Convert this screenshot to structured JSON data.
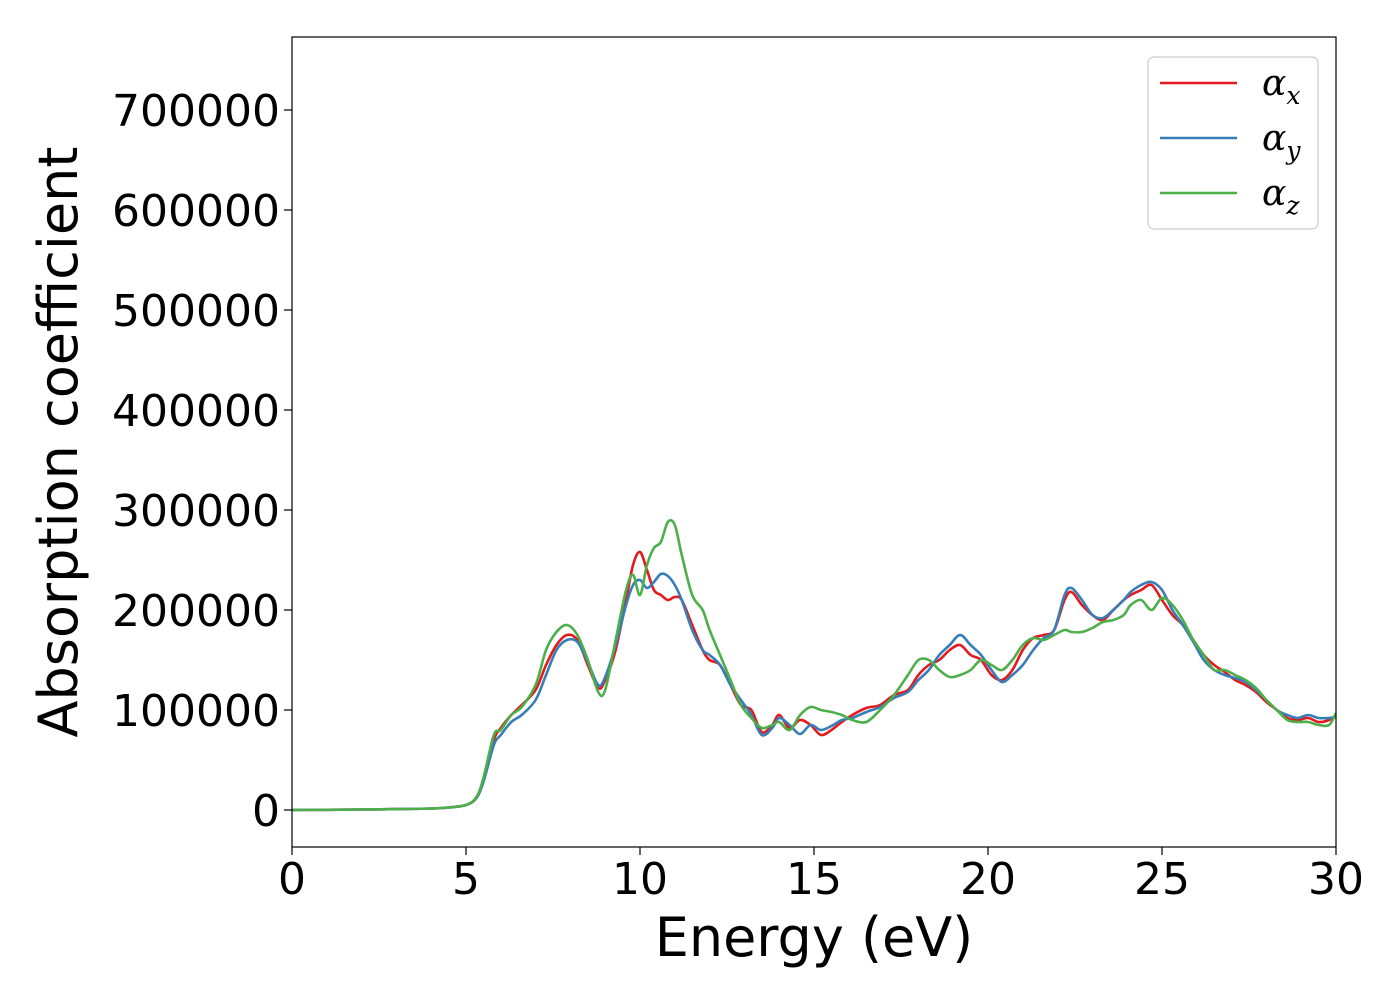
{
  "chart_data": {
    "type": "line",
    "xlabel": "Energy (eV)",
    "ylabel": "Absorption coefficient",
    "xlim": [
      0,
      30
    ],
    "ylim": [
      -37000,
      773000
    ],
    "x_ticks": [
      0,
      5,
      10,
      15,
      20,
      25,
      30
    ],
    "y_ticks": [
      0,
      100000,
      200000,
      300000,
      400000,
      500000,
      600000,
      700000
    ],
    "grid": false,
    "legend_position": "top-right",
    "series": [
      {
        "name": "α",
        "subscript": "x",
        "color": "#e41a1c",
        "x": [
          0,
          1,
          2,
          3,
          4,
          4.5,
          5,
          5.3,
          5.5,
          5.8,
          6.0,
          6.3,
          6.6,
          7.0,
          7.3,
          7.6,
          7.9,
          8.2,
          8.5,
          8.8,
          9.0,
          9.3,
          9.6,
          9.8,
          10.0,
          10.2,
          10.4,
          10.6,
          10.8,
          11.0,
          11.2,
          11.5,
          11.8,
          12.0,
          12.3,
          12.6,
          12.9,
          13.2,
          13.5,
          13.8,
          14.0,
          14.3,
          14.6,
          14.9,
          15.2,
          15.5,
          15.8,
          16.1,
          16.5,
          16.9,
          17.3,
          17.7,
          18.0,
          18.3,
          18.6,
          18.9,
          19.2,
          19.5,
          19.8,
          20.1,
          20.4,
          20.7,
          21.0,
          21.3,
          21.6,
          21.9,
          22.2,
          22.4,
          22.7,
          23.0,
          23.3,
          23.6,
          23.9,
          24.1,
          24.4,
          24.7,
          25.0,
          25.3,
          25.6,
          25.9,
          26.2,
          26.5,
          26.8,
          27.1,
          27.4,
          27.7,
          28.0,
          28.3,
          28.6,
          28.9,
          29.2,
          29.5,
          29.8,
          30
        ],
        "y": [
          0,
          200,
          500,
          900,
          1500,
          2500,
          5000,
          12000,
          30000,
          70000,
          82000,
          95000,
          105000,
          120000,
          145000,
          165000,
          175000,
          170000,
          145000,
          122000,
          130000,
          160000,
          210000,
          245000,
          258000,
          240000,
          220000,
          215000,
          210000,
          213000,
          210000,
          185000,
          160000,
          150000,
          145000,
          125000,
          105000,
          100000,
          78000,
          85000,
          95000,
          82000,
          90000,
          85000,
          75000,
          80000,
          88000,
          95000,
          102000,
          105000,
          115000,
          120000,
          135000,
          145000,
          150000,
          160000,
          165000,
          155000,
          150000,
          135000,
          130000,
          140000,
          160000,
          172000,
          175000,
          180000,
          210000,
          218000,
          205000,
          195000,
          190000,
          200000,
          210000,
          215000,
          220000,
          225000,
          210000,
          195000,
          185000,
          170000,
          155000,
          145000,
          138000,
          130000,
          125000,
          118000,
          108000,
          100000,
          92000,
          90000,
          92000,
          88000,
          90000,
          95000
        ]
      },
      {
        "name": "α",
        "subscript": "y",
        "color": "#377eb8",
        "x": [
          0,
          1,
          2,
          3,
          4,
          4.5,
          5,
          5.3,
          5.5,
          5.8,
          6.0,
          6.3,
          6.6,
          7.0,
          7.3,
          7.6,
          7.9,
          8.2,
          8.5,
          8.8,
          9.0,
          9.3,
          9.6,
          9.8,
          10.0,
          10.2,
          10.4,
          10.6,
          10.8,
          11.0,
          11.2,
          11.5,
          11.8,
          12.0,
          12.3,
          12.6,
          12.9,
          13.2,
          13.5,
          13.8,
          14.0,
          14.3,
          14.6,
          14.9,
          15.2,
          15.5,
          15.8,
          16.1,
          16.5,
          16.9,
          17.3,
          17.7,
          18.0,
          18.3,
          18.6,
          18.9,
          19.2,
          19.5,
          19.8,
          20.1,
          20.4,
          20.7,
          21.0,
          21.3,
          21.6,
          21.9,
          22.2,
          22.4,
          22.7,
          23.0,
          23.3,
          23.6,
          23.9,
          24.1,
          24.4,
          24.7,
          25.0,
          25.3,
          25.6,
          25.9,
          26.2,
          26.5,
          26.8,
          27.1,
          27.4,
          27.7,
          28.0,
          28.3,
          28.6,
          28.9,
          29.2,
          29.5,
          29.8,
          30
        ],
        "y": [
          0,
          200,
          500,
          900,
          1500,
          2500,
          5000,
          12000,
          28000,
          65000,
          75000,
          88000,
          95000,
          110000,
          135000,
          160000,
          170000,
          168000,
          148000,
          125000,
          133000,
          165000,
          205000,
          225000,
          230000,
          222000,
          228000,
          236000,
          234000,
          225000,
          210000,
          180000,
          160000,
          155000,
          145000,
          125000,
          110000,
          95000,
          75000,
          82000,
          92000,
          85000,
          76000,
          85000,
          80000,
          84000,
          90000,
          92000,
          98000,
          103000,
          112000,
          118000,
          130000,
          140000,
          155000,
          165000,
          175000,
          165000,
          155000,
          140000,
          128000,
          135000,
          145000,
          160000,
          172000,
          180000,
          215000,
          222000,
          210000,
          195000,
          192000,
          200000,
          210000,
          218000,
          225000,
          228000,
          220000,
          200000,
          185000,
          168000,
          150000,
          140000,
          135000,
          132000,
          128000,
          120000,
          110000,
          100000,
          95000,
          92000,
          95000,
          92000,
          92000,
          93000
        ]
      },
      {
        "name": "α",
        "subscript": "z",
        "color": "#4daf4a",
        "x": [
          0,
          1,
          2,
          3,
          4,
          4.5,
          5,
          5.3,
          5.5,
          5.8,
          6.0,
          6.3,
          6.6,
          7.0,
          7.3,
          7.6,
          7.9,
          8.2,
          8.5,
          8.8,
          9.0,
          9.3,
          9.6,
          9.8,
          10.0,
          10.2,
          10.4,
          10.6,
          10.8,
          11.0,
          11.2,
          11.5,
          11.8,
          12.0,
          12.3,
          12.6,
          12.9,
          13.2,
          13.5,
          13.8,
          14.0,
          14.3,
          14.6,
          14.9,
          15.2,
          15.5,
          15.8,
          16.1,
          16.5,
          16.9,
          17.3,
          17.7,
          18.0,
          18.3,
          18.6,
          18.9,
          19.2,
          19.5,
          19.8,
          20.1,
          20.4,
          20.7,
          21.0,
          21.3,
          21.6,
          21.9,
          22.2,
          22.4,
          22.7,
          23.0,
          23.3,
          23.6,
          23.9,
          24.1,
          24.4,
          24.7,
          25.0,
          25.3,
          25.6,
          25.9,
          26.2,
          26.5,
          26.8,
          27.1,
          27.4,
          27.7,
          28.0,
          28.3,
          28.6,
          28.9,
          29.2,
          29.5,
          29.8,
          30
        ],
        "y": [
          0,
          200,
          500,
          900,
          1500,
          2500,
          5000,
          13000,
          32000,
          75000,
          80000,
          95000,
          103000,
          125000,
          160000,
          178000,
          185000,
          175000,
          150000,
          118000,
          120000,
          170000,
          220000,
          235000,
          215000,
          245000,
          262000,
          268000,
          288000,
          285000,
          255000,
          215000,
          200000,
          180000,
          155000,
          130000,
          105000,
          92000,
          82000,
          85000,
          88000,
          80000,
          95000,
          103000,
          100000,
          98000,
          95000,
          90000,
          88000,
          100000,
          115000,
          135000,
          150000,
          150000,
          140000,
          133000,
          135000,
          140000,
          150000,
          145000,
          140000,
          150000,
          165000,
          172000,
          170000,
          175000,
          180000,
          178000,
          178000,
          182000,
          188000,
          190000,
          195000,
          205000,
          210000,
          200000,
          212000,
          205000,
          190000,
          170000,
          155000,
          140000,
          140000,
          135000,
          130000,
          122000,
          110000,
          100000,
          90000,
          88000,
          88000,
          85000,
          85000,
          97000
        ]
      }
    ]
  }
}
